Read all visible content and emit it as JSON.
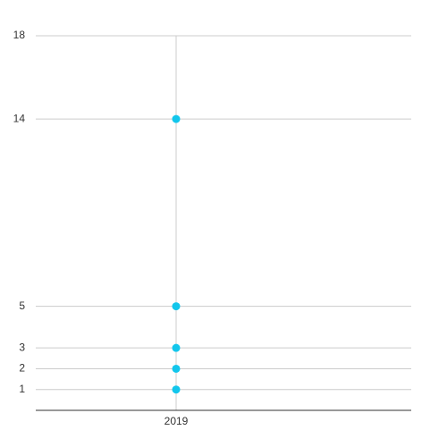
{
  "chart_data": {
    "type": "scatter",
    "categories": [
      "2019"
    ],
    "values": [
      [
        14,
        5,
        3,
        2,
        1
      ]
    ],
    "color": "#12c6ec",
    "ylim": [
      0,
      18
    ],
    "yticks": [
      1,
      2,
      3,
      5,
      14,
      18
    ],
    "grid": true
  }
}
